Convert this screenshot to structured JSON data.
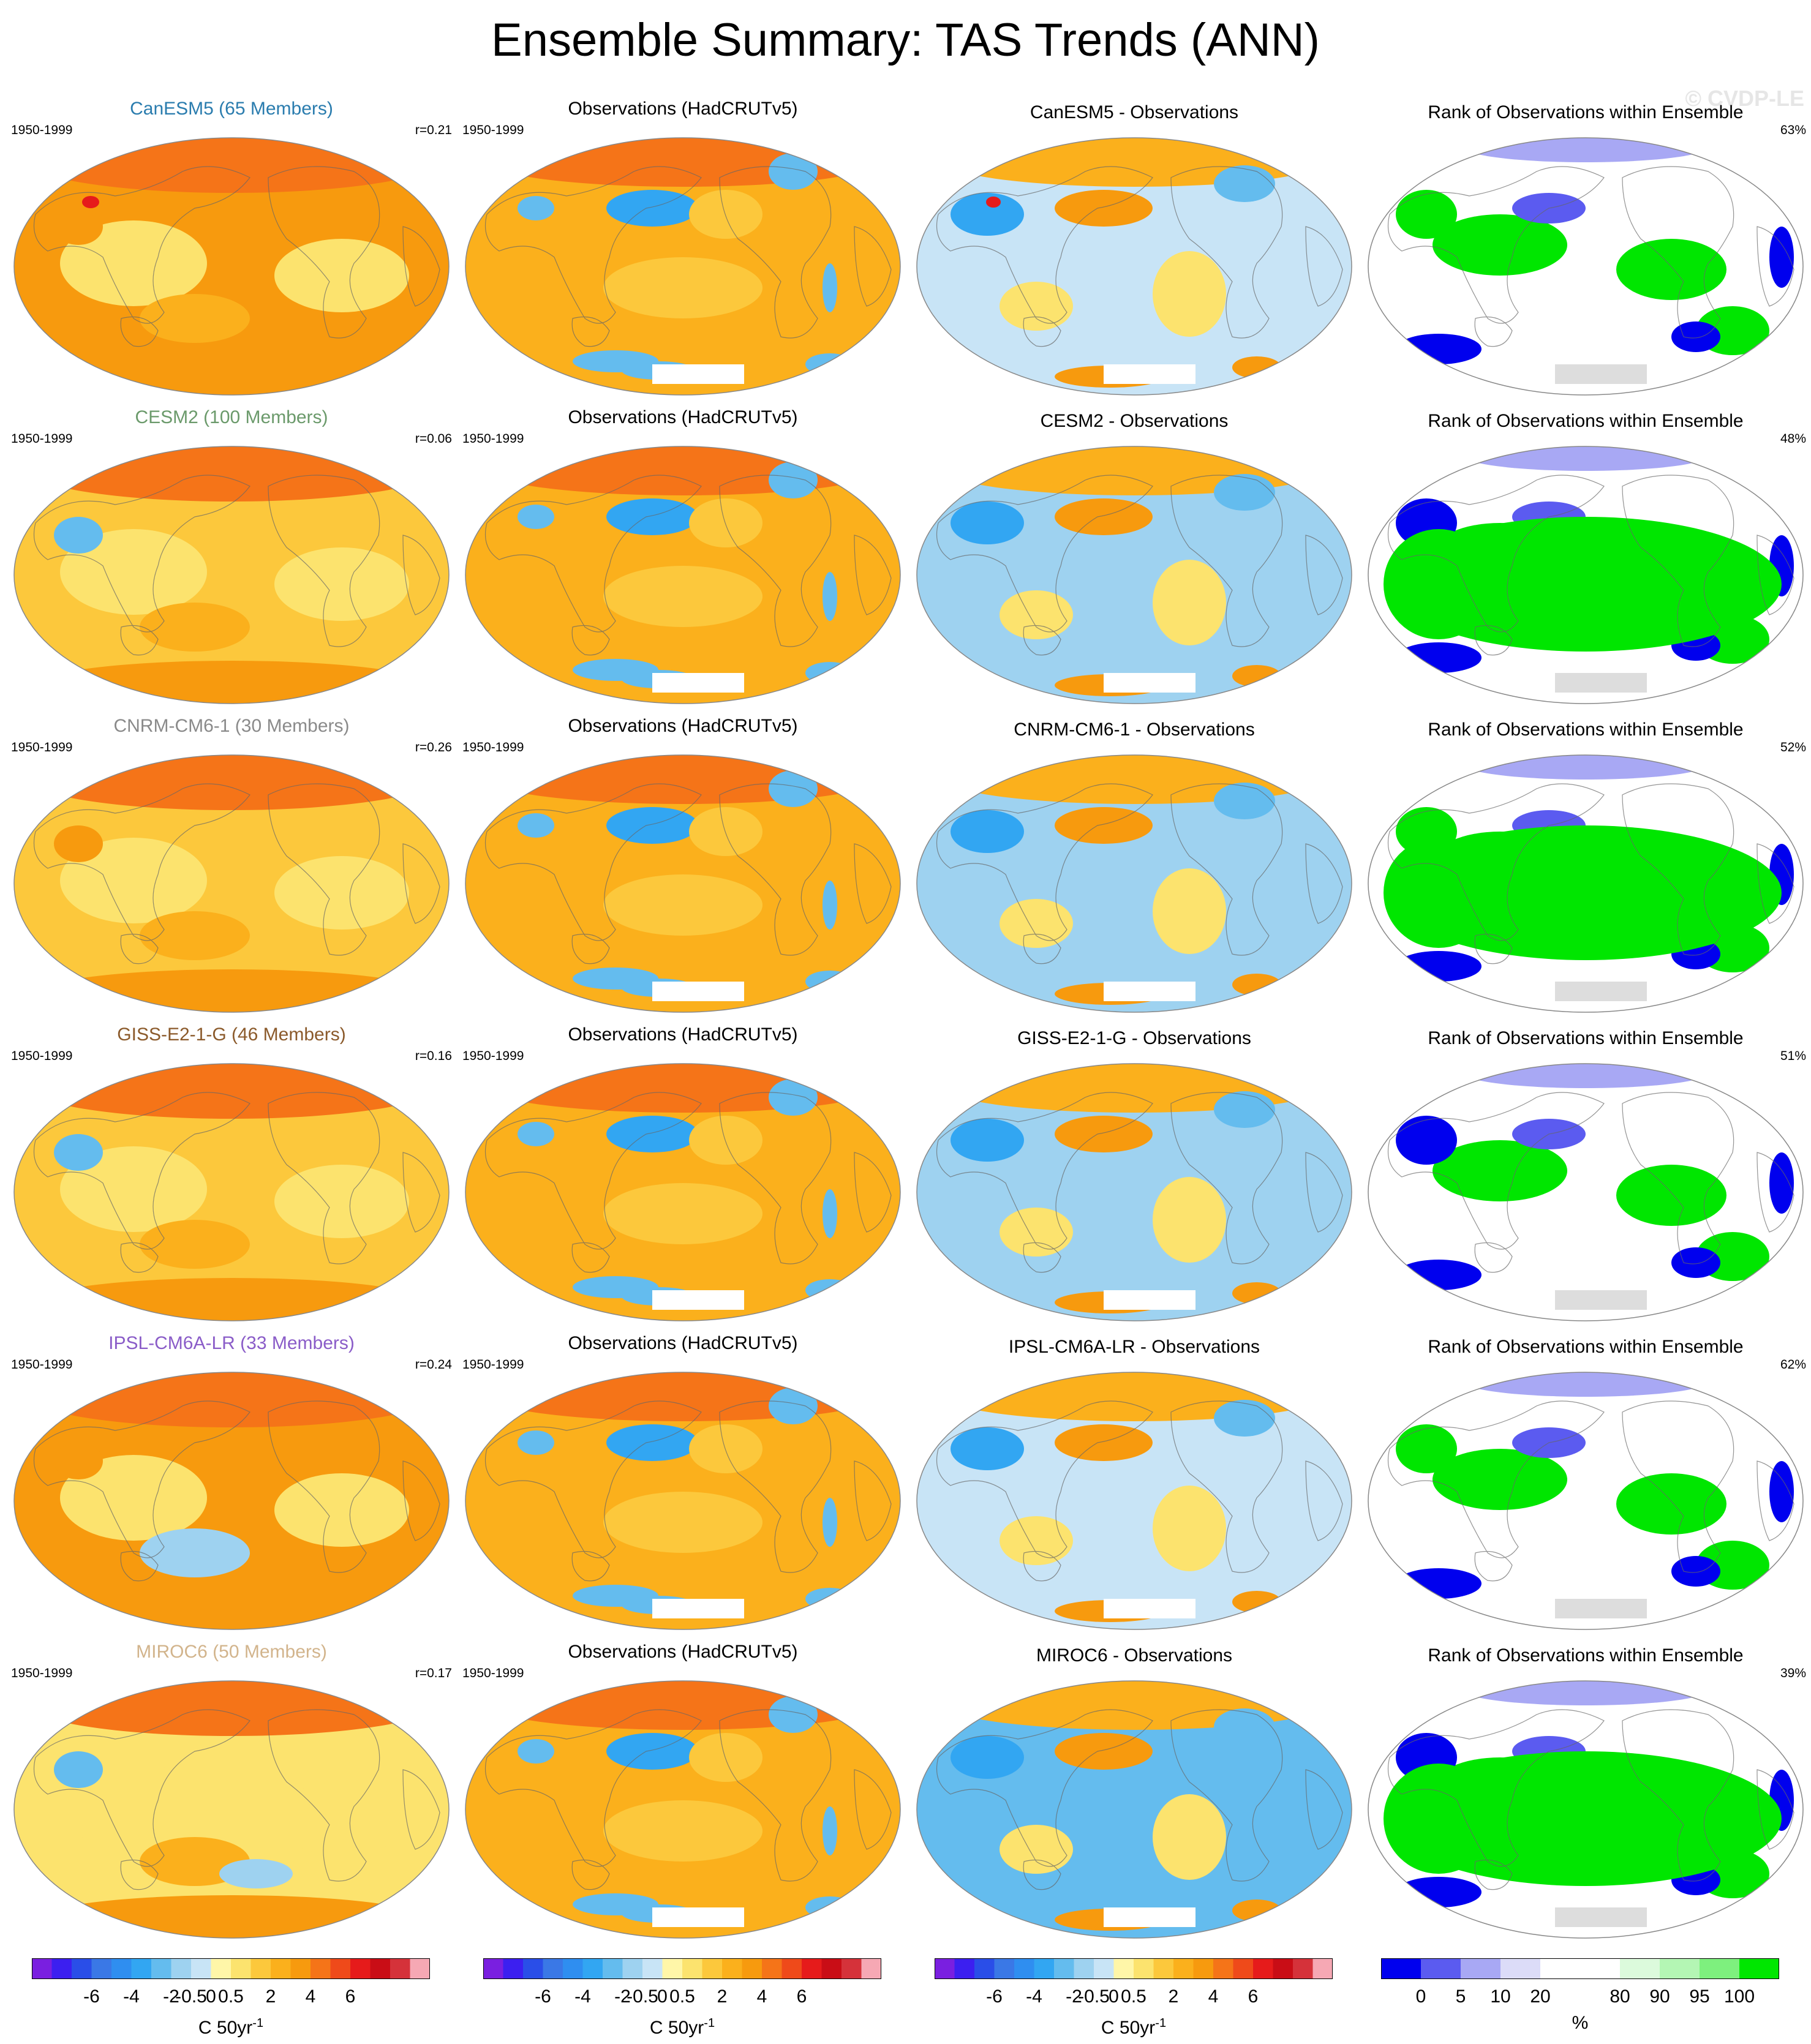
{
  "title": "Ensemble Summary: TAS Trends (ANN)",
  "watermark": "© CVDP-LE",
  "colors": {
    "land_outline": "#666666",
    "map_outline": "#888888",
    "missing": "#dddddd"
  },
  "rows": [
    {
      "model_title": "CanESM5 (65 Members)",
      "model_color": "#2a7cae",
      "period": "1950-1999",
      "pattern_corr": "r=0.21",
      "obs_title": "Observations (HadCRUTv5)",
      "obs_period": "1950-1999",
      "diff_title": "CanESM5 - Observations",
      "rank_title": "Rank of Observations within Ensemble",
      "rank_pct": "63%"
    },
    {
      "model_title": "CESM2 (100 Members)",
      "model_color": "#6b9a6b",
      "period": "1950-1999",
      "pattern_corr": "r=0.06",
      "obs_title": "Observations (HadCRUTv5)",
      "obs_period": "1950-1999",
      "diff_title": "CESM2 - Observations",
      "rank_title": "Rank of Observations within Ensemble",
      "rank_pct": "48%"
    },
    {
      "model_title": "CNRM-CM6-1 (30 Members)",
      "model_color": "#8a8a8a",
      "period": "1950-1999",
      "pattern_corr": "r=0.26",
      "obs_title": "Observations (HadCRUTv5)",
      "obs_period": "1950-1999",
      "diff_title": "CNRM-CM6-1 - Observations",
      "rank_title": "Rank of Observations within Ensemble",
      "rank_pct": "52%"
    },
    {
      "model_title": "GISS-E2-1-G (46 Members)",
      "model_color": "#8b5a2b",
      "period": "1950-1999",
      "pattern_corr": "r=0.16",
      "obs_title": "Observations (HadCRUTv5)",
      "obs_period": "1950-1999",
      "diff_title": "GISS-E2-1-G - Observations",
      "rank_title": "Rank of Observations within Ensemble",
      "rank_pct": "51%"
    },
    {
      "model_title": "IPSL-CM6A-LR (33 Members)",
      "model_color": "#8a5cc8",
      "period": "1950-1999",
      "pattern_corr": "r=0.24",
      "obs_title": "Observations (HadCRUTv5)",
      "obs_period": "1950-1999",
      "diff_title": "IPSL-CM6A-LR - Observations",
      "rank_title": "Rank of Observations within Ensemble",
      "rank_pct": "62%"
    },
    {
      "model_title": "MIROC6 (50 Members)",
      "model_color": "#d2b48c",
      "period": "1950-1999",
      "pattern_corr": "r=0.17",
      "obs_title": "Observations (HadCRUTv5)",
      "obs_period": "1950-1999",
      "diff_title": "MIROC6 - Observations",
      "rank_title": "Rank of Observations within Ensemble",
      "rank_pct": "39%"
    }
  ],
  "colorbars": {
    "trend": {
      "colors": [
        "#7a1fe0",
        "#3c1ff0",
        "#2a4ee8",
        "#3a78e6",
        "#2f8ef0",
        "#32a6f2",
        "#64bcee",
        "#9ed2f0",
        "#c8e4f6",
        "#fff6a8",
        "#fce36e",
        "#fcc83c",
        "#fbb01c",
        "#f79a0e",
        "#f57418",
        "#ef4a1a",
        "#e61b1b",
        "#c90d16",
        "#d5323a",
        "#f6a8b4"
      ],
      "tick_labels": [
        "-6",
        "-4",
        "-2",
        "-0.5",
        "0",
        "0.5",
        "2",
        "4",
        "6"
      ],
      "unit_base": "C 50yr",
      "unit_sup": "-1"
    },
    "rank": {
      "colors": [
        "#0000ee",
        "#5b5bf0",
        "#a8a8f4",
        "#dcdcf8",
        "#ffffff",
        "#ffffff",
        "#dcfadc",
        "#b4f6b4",
        "#7ef07e",
        "#00e600"
      ],
      "tick_labels": [
        "0",
        "5",
        "10",
        "20",
        "80",
        "90",
        "95",
        "100"
      ],
      "unit": "%"
    }
  }
}
